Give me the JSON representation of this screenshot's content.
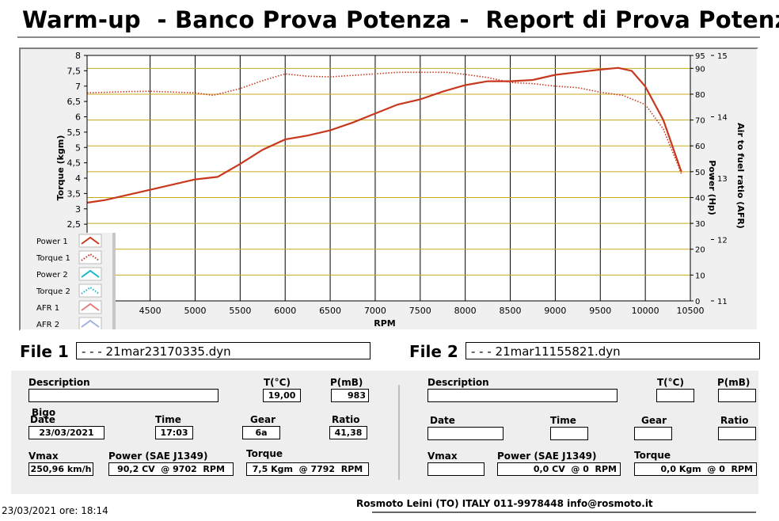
{
  "header": {
    "title": "Warm-up  - Banco Prova Potenza -  Report di Prova Potenza"
  },
  "chart_data": {
    "type": "line",
    "xlabel": "RPM",
    "x_ticks": [
      "4500",
      "5000",
      "5500",
      "6000",
      "6500",
      "7000",
      "7500",
      "8000",
      "8500",
      "9000",
      "9500",
      "10000",
      "10500"
    ],
    "xlim": [
      3800,
      10500
    ],
    "y_left": {
      "label": "Torque (kgm)",
      "ticks": [
        "8",
        "7,5",
        "7",
        "6,5",
        "6",
        "5,5",
        "5",
        "4,5",
        "4",
        "3,5",
        "3",
        "2,5"
      ],
      "ylim": [
        0,
        8
      ]
    },
    "y_right1": {
      "label": "Power (Hp)",
      "ticks": [
        "95",
        "90",
        "80",
        "70",
        "60",
        "50",
        "40",
        "30",
        "20",
        "10",
        "0"
      ],
      "ylim": [
        0,
        95
      ]
    },
    "y_right2": {
      "label": "Air to fuel ratio (AFR)",
      "ticks": [
        "15",
        "14",
        "13",
        "12",
        "11"
      ],
      "ylim": [
        11,
        15
      ]
    },
    "grid": true,
    "legend_position": "bottom-left",
    "legend": [
      {
        "name": "Power 1",
        "color": "#c8381e",
        "style": "solid"
      },
      {
        "name": "Torque 1",
        "color": "#c8381e",
        "style": "dotted"
      },
      {
        "name": "Power 2",
        "color": "#17b9c9",
        "style": "solid"
      },
      {
        "name": "Torque 2",
        "color": "#17b9c9",
        "style": "dotted"
      },
      {
        "name": "AFR 1",
        "color": "#e08080",
        "style": "solid"
      },
      {
        "name": "AFR 2",
        "color": "#a0b0e0",
        "style": "solid"
      }
    ],
    "series": [
      {
        "name": "Power 1",
        "axis": "hp",
        "x": [
          3800,
          4000,
          4500,
          5000,
          5250,
          5500,
          5750,
          6000,
          6250,
          6500,
          6750,
          7000,
          7250,
          7500,
          7750,
          8000,
          8250,
          8500,
          8750,
          9000,
          9250,
          9500,
          9700,
          9850,
          10000,
          10200,
          10400
        ],
        "values": [
          38.0,
          39.0,
          43.0,
          47.0,
          48.0,
          53.0,
          58.5,
          62.5,
          64.0,
          66.0,
          69.0,
          72.5,
          76.0,
          78.0,
          81.0,
          83.5,
          85.0,
          85.0,
          85.5,
          87.5,
          88.5,
          89.5,
          90.2,
          89.0,
          83.0,
          70.0,
          50.0
        ]
      },
      {
        "name": "Torque 1",
        "axis": "kgm",
        "x": [
          3800,
          4250,
          4500,
          5000,
          5200,
          5500,
          5750,
          6000,
          6250,
          6500,
          7000,
          7250,
          7500,
          7792,
          8000,
          8250,
          8500,
          8750,
          9000,
          9250,
          9500,
          9750,
          10000,
          10200,
          10400
        ],
        "values": [
          6.78,
          6.82,
          6.83,
          6.78,
          6.7,
          6.92,
          7.18,
          7.4,
          7.32,
          7.3,
          7.4,
          7.45,
          7.45,
          7.45,
          7.38,
          7.28,
          7.12,
          7.08,
          7.0,
          6.95,
          6.8,
          6.7,
          6.4,
          5.6,
          4.15
        ]
      }
    ]
  },
  "files": {
    "file1_label": "File 1",
    "file1_name": "- - - 21mar23170335.dyn",
    "file2_label": "File 2",
    "file2_name": "- - - 21mar11155821.dyn"
  },
  "panel1": {
    "description_label": "Description",
    "description_value": "",
    "t_label": "T(°C)",
    "t_value": "19,00",
    "p_label": "P(mB)",
    "p_value": "983",
    "bigo": "Bigo",
    "date_label": "Date",
    "date_value": "23/03/2021",
    "time_label": "Time",
    "time_value": "17:03",
    "gear_label": "Gear",
    "gear_value": "6a",
    "ratio_label": "Ratio",
    "ratio_value": "41,38",
    "vmax_label": "Vmax",
    "vmax_value": "250,96 km/h",
    "power_label": "Power (SAE J1349)",
    "power_value": "90,2 CV  @ 9702  RPM",
    "torque_label": "Torque",
    "torque_value": "7,5 Kgm  @ 7792  RPM"
  },
  "panel2": {
    "description_label": "Description",
    "description_value": "",
    "t_label": "T(°C)",
    "t_value": "",
    "p_label": "P(mB)",
    "p_value": "",
    "date_label": "Date",
    "date_value": "",
    "time_label": "Time",
    "time_value": "",
    "gear_label": "Gear",
    "gear_value": "",
    "ratio_label": "Ratio",
    "ratio_value": "",
    "vmax_label": "Vmax",
    "vmax_value": "",
    "power_label": "Power (SAE J1349)",
    "power_value": "0,0 CV  @ 0  RPM",
    "torque_label": "Torque",
    "torque_value": "0,0 Kgm  @ 0  RPM"
  },
  "footer": {
    "datetime": "23/03/2021  ore: 18:14",
    "company": "Rosmoto Leini (TO) ITALY 011-9978448  info@rosmoto.it"
  }
}
